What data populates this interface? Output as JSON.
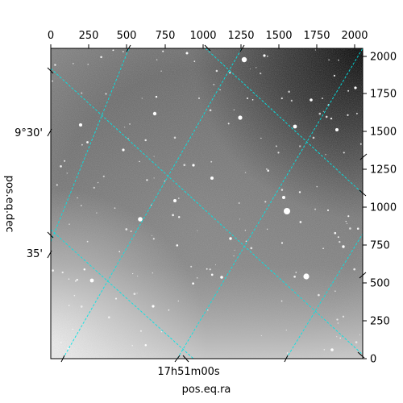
{
  "chart_data": {
    "type": "image",
    "xlabel": "pos.eq.ra",
    "ylabel": "pos.eq.dec",
    "pixel_axes": {
      "x_range": [
        0,
        2048
      ],
      "y_range": [
        0,
        2048
      ],
      "top_ticks": [
        "0",
        "250",
        "500",
        "750",
        "1000",
        "1250",
        "1500",
        "1750",
        "2000"
      ],
      "right_ticks": [
        "0",
        "250",
        "500",
        "750",
        "1000",
        "1250",
        "1500",
        "1750",
        "2000"
      ]
    },
    "world_ticks": {
      "dec": [
        "9°30'",
        "35'"
      ],
      "ra": [
        "17h51m00s"
      ]
    },
    "coordinate_grid": true,
    "grid_color": "#00e5e5",
    "colormap": "grayscale"
  }
}
